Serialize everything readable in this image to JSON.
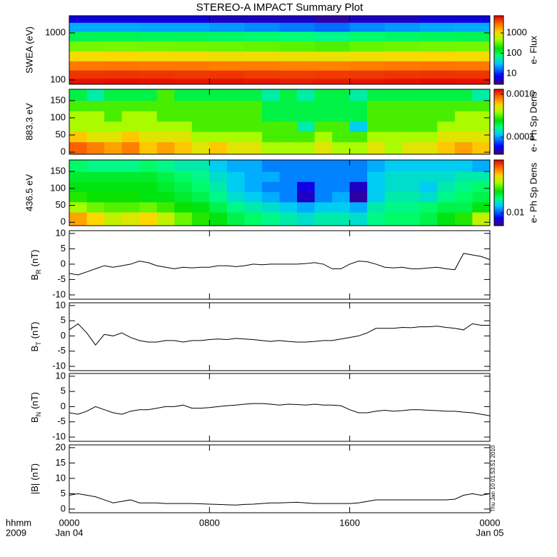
{
  "chart_data": [
    {
      "type": "heatmap",
      "title": "STEREO-A IMPACT Summary Plot",
      "ylabel": "SWEA (eV)",
      "ylog": true,
      "xlim": [
        0,
        24
      ],
      "xticks": [
        0,
        8,
        16,
        24
      ],
      "ylim": [
        81,
        2310
      ],
      "yticks": [
        100,
        1000
      ],
      "x": [
        1,
        3,
        5,
        7,
        9,
        11,
        13,
        15,
        17,
        19,
        21,
        23
      ],
      "y": [
        90,
        130,
        200,
        320,
        520,
        850,
        1350,
        2050
      ],
      "z": [
        [
          6000,
          6200,
          6000,
          5800,
          6000,
          5800,
          5500,
          5600,
          5800,
          6000,
          6200,
          6000
        ],
        [
          4500,
          4600,
          4500,
          4400,
          4500,
          4300,
          4200,
          4300,
          4400,
          4500,
          4600,
          4500
        ],
        [
          2500,
          2600,
          2500,
          2500,
          2400,
          2400,
          2300,
          2300,
          2400,
          2500,
          2600,
          2500
        ],
        [
          1000,
          1050,
          1000,
          1000,
          950,
          950,
          900,
          900,
          950,
          1000,
          1050,
          1000
        ],
        [
          350,
          360,
          350,
          340,
          330,
          320,
          300,
          280,
          320,
          340,
          350,
          350
        ],
        [
          100,
          100,
          95,
          95,
          90,
          85,
          80,
          70,
          85,
          90,
          95,
          100
        ],
        [
          25,
          25,
          24,
          24,
          22,
          20,
          18,
          16,
          20,
          22,
          24,
          25
        ],
        [
          6,
          6,
          6,
          6,
          5,
          5,
          5,
          4,
          5,
          5,
          6,
          6
        ]
      ],
      "colormap": "rainbow",
      "clog": true,
      "clim": [
        3,
        7000
      ],
      "cticks": [
        10,
        100,
        1000
      ],
      "clabel": "e- Flux"
    },
    {
      "type": "heatmap",
      "ylabel": "883.3 eV",
      "ylog": false,
      "xlim": [
        0,
        24
      ],
      "xticks": [
        0,
        8,
        16,
        24
      ],
      "ylim": [
        -6,
        183
      ],
      "yticks": [
        0,
        50,
        100,
        150
      ],
      "x": [
        0.5,
        1.5,
        2.5,
        3.5,
        4.5,
        5.5,
        6.5,
        7.5,
        8.5,
        9.5,
        10.5,
        11.5,
        12.5,
        13.5,
        14.5,
        15.5,
        16.5,
        17.5,
        18.5,
        19.5,
        20.5,
        21.5,
        22.5,
        23.5
      ],
      "y": [
        15,
        45,
        75,
        105,
        135,
        165
      ],
      "z": [
        [
          0.0009,
          0.0008,
          0.0007,
          0.0008,
          0.0006,
          0.0007,
          0.0006,
          0.0005,
          0.0006,
          0.0005,
          0.0005,
          0.0004,
          0.0004,
          0.0004,
          0.0005,
          0.0004,
          0.0004,
          0.0005,
          0.0004,
          0.0005,
          0.0005,
          0.0006,
          0.0007,
          0.0006
        ],
        [
          0.0006,
          0.0005,
          0.0005,
          0.0006,
          0.0005,
          0.0005,
          0.0005,
          0.0004,
          0.0004,
          0.0004,
          0.0004,
          0.0003,
          0.0003,
          0.0003,
          0.0004,
          0.0003,
          0.0003,
          0.0004,
          0.0004,
          0.0004,
          0.0004,
          0.0005,
          0.0005,
          0.0005
        ],
        [
          0.0004,
          0.0004,
          0.0004,
          0.0004,
          0.0004,
          0.0004,
          0.0004,
          0.0003,
          0.0003,
          0.0003,
          0.0003,
          0.0003,
          0.0003,
          0.00015,
          0.0003,
          0.0003,
          0.00012,
          0.0003,
          0.0003,
          0.0003,
          0.0003,
          0.0004,
          0.0004,
          0.0004
        ],
        [
          0.0004,
          0.0004,
          0.0003,
          0.0004,
          0.0004,
          0.0003,
          0.0003,
          0.0003,
          0.0003,
          0.0003,
          0.0003,
          0.0002,
          0.0002,
          0.0002,
          0.0002,
          0.0002,
          0.0002,
          0.0003,
          0.0003,
          0.0003,
          0.0003,
          0.0003,
          0.0004,
          0.0004
        ],
        [
          0.0003,
          0.0003,
          0.0003,
          0.0003,
          0.0003,
          0.0003,
          0.0003,
          0.0003,
          0.0003,
          0.0003,
          0.0003,
          0.0002,
          0.0002,
          0.0002,
          0.0002,
          0.0002,
          0.0002,
          0.0003,
          0.0003,
          0.0003,
          0.0003,
          0.0003,
          0.0003,
          0.0003
        ],
        [
          0.0002,
          0.00015,
          0.0002,
          0.0002,
          0.0002,
          0.0003,
          0.0002,
          0.0002,
          0.0002,
          0.0002,
          0.0002,
          0.00015,
          0.0002,
          0.00015,
          0.0002,
          0.0002,
          0.00015,
          0.0002,
          0.0002,
          0.0002,
          0.0002,
          0.0002,
          0.0002,
          0.00015
        ]
      ],
      "colormap": "rainbow",
      "clog": true,
      "clim": [
        4e-05,
        0.0013
      ],
      "cticks": [
        {
          "value": 0.001,
          "label": "0.0010"
        },
        0.0001
      ],
      "clabel": "e- Ph Sp Dens"
    },
    {
      "type": "heatmap",
      "ylabel": "436.5 eV",
      "ylog": false,
      "xlim": [
        0,
        24
      ],
      "xticks": [
        0,
        8,
        16,
        24
      ],
      "ylim": [
        -10,
        184
      ],
      "yticks": [
        0,
        50,
        100,
        150
      ],
      "x": [
        0.5,
        1.5,
        2.5,
        3.5,
        4.5,
        5.5,
        6.5,
        7.5,
        8.5,
        9.5,
        10.5,
        11.5,
        12.5,
        13.5,
        14.5,
        15.5,
        16.5,
        17.5,
        18.5,
        19.5,
        20.5,
        21.5,
        22.5,
        23.5
      ],
      "y": [
        15,
        45,
        75,
        105,
        135,
        165
      ],
      "z": [
        [
          0.04,
          0.035,
          0.03,
          0.032,
          0.035,
          0.03,
          0.025,
          0.022,
          0.02,
          0.018,
          0.017,
          0.016,
          0.015,
          0.014,
          0.015,
          0.015,
          0.014,
          0.016,
          0.017,
          0.017,
          0.018,
          0.02,
          0.022,
          0.03
        ],
        [
          0.028,
          0.025,
          0.024,
          0.024,
          0.025,
          0.023,
          0.021,
          0.02,
          0.018,
          0.016,
          0.015,
          0.014,
          0.013,
          0.012,
          0.013,
          0.013,
          0.012,
          0.015,
          0.016,
          0.016,
          0.017,
          0.018,
          0.018,
          0.02
        ],
        [
          0.022,
          0.021,
          0.021,
          0.021,
          0.02,
          0.02,
          0.019,
          0.018,
          0.016,
          0.014,
          0.013,
          0.012,
          0.011,
          0.0075,
          0.011,
          0.012,
          0.007,
          0.013,
          0.015,
          0.015,
          0.014,
          0.016,
          0.017,
          0.018
        ],
        [
          0.02,
          0.02,
          0.02,
          0.02,
          0.02,
          0.019,
          0.018,
          0.017,
          0.015,
          0.013,
          0.012,
          0.011,
          0.011,
          0.008,
          0.011,
          0.011,
          0.0075,
          0.013,
          0.014,
          0.014,
          0.013,
          0.015,
          0.016,
          0.017
        ],
        [
          0.019,
          0.019,
          0.019,
          0.019,
          0.019,
          0.018,
          0.017,
          0.016,
          0.014,
          0.013,
          0.012,
          0.012,
          0.011,
          0.011,
          0.011,
          0.011,
          0.011,
          0.013,
          0.014,
          0.014,
          0.014,
          0.014,
          0.015,
          0.015
        ],
        [
          0.017,
          0.016,
          0.016,
          0.016,
          0.017,
          0.016,
          0.015,
          0.015,
          0.013,
          0.012,
          0.012,
          0.011,
          0.011,
          0.011,
          0.011,
          0.011,
          0.011,
          0.012,
          0.013,
          0.013,
          0.013,
          0.013,
          0.013,
          0.012
        ]
      ],
      "colormap": "rainbow",
      "clog": true,
      "clim": [
        0.0065,
        0.06
      ],
      "cticks": [
        0.01
      ],
      "clabel": "e- Ph Sp Dens"
    },
    {
      "type": "line",
      "ylabel": {
        "main": "B",
        "sub": "R",
        "unit": "(nT)"
      },
      "color": "#000000",
      "xlim": [
        0,
        24
      ],
      "xticks": [
        0,
        8,
        16,
        24
      ],
      "ylim": [
        -11.4,
        10.9
      ],
      "yticks": [
        -10,
        -5,
        0,
        5,
        10
      ],
      "x": [
        0,
        0.5,
        1,
        1.5,
        2,
        2.5,
        3,
        3.5,
        4,
        4.5,
        5,
        5.5,
        6,
        6.5,
        7,
        7.5,
        8,
        8.5,
        9,
        9.5,
        10,
        10.5,
        11,
        11.5,
        12,
        12.5,
        13,
        13.5,
        14,
        14.5,
        15,
        15.5,
        16,
        16.5,
        17,
        17.5,
        18,
        18.5,
        19,
        19.5,
        20,
        20.5,
        21,
        21.5,
        22,
        22.5,
        23,
        23.5,
        24
      ],
      "values": [
        -3,
        -3.5,
        -2.5,
        -1.5,
        -0.5,
        -1,
        -0.5,
        0,
        1,
        0.5,
        -0.5,
        -1,
        -1.5,
        -1,
        -1.2,
        -1,
        -1,
        -0.5,
        -0.5,
        -0.8,
        -0.5,
        0,
        -0.2,
        0,
        0,
        0,
        0,
        0.2,
        0.5,
        0,
        -1.5,
        -1.5,
        0,
        1,
        0.8,
        0,
        -1,
        -1.2,
        -1,
        -1.5,
        -1.5,
        -1.2,
        -1,
        -1.5,
        -1.8,
        3.5,
        3,
        2.5,
        1.5
      ]
    },
    {
      "type": "line",
      "ylabel": {
        "main": "B",
        "sub": "T",
        "unit": "(nT)"
      },
      "color": "#000000",
      "xlim": [
        0,
        24
      ],
      "xticks": [
        0,
        8,
        16,
        24
      ],
      "ylim": [
        -11.4,
        10.9
      ],
      "yticks": [
        -10,
        -5,
        0,
        5,
        10
      ],
      "x": [
        0,
        0.5,
        1,
        1.5,
        2,
        2.5,
        3,
        3.5,
        4,
        4.5,
        5,
        5.5,
        6,
        6.5,
        7,
        7.5,
        8,
        8.5,
        9,
        9.5,
        10,
        10.5,
        11,
        11.5,
        12,
        12.5,
        13,
        13.5,
        14,
        14.5,
        15,
        15.5,
        16,
        16.5,
        17,
        17.5,
        18,
        18.5,
        19,
        19.5,
        20,
        20.5,
        21,
        21.5,
        22,
        22.5,
        23,
        23.5,
        24
      ],
      "values": [
        2,
        4,
        1,
        -3,
        0.5,
        0,
        1,
        -0.5,
        -1.5,
        -2,
        -2,
        -1.5,
        -1.5,
        -2,
        -1.5,
        -1.5,
        -1.2,
        -1,
        -1.2,
        -0.8,
        -1,
        -1.2,
        -1.5,
        -1.8,
        -1.5,
        -1.8,
        -2,
        -2,
        -1.8,
        -1.5,
        -1.5,
        -1,
        -0.5,
        0,
        1,
        2.5,
        2.5,
        2.5,
        2.8,
        2.7,
        3,
        3,
        3.2,
        2.8,
        2.5,
        2,
        4,
        3.5,
        3.5
      ]
    },
    {
      "type": "line",
      "ylabel": {
        "main": "B",
        "sub": "N",
        "unit": "(nT)"
      },
      "color": "#000000",
      "xlim": [
        0,
        24
      ],
      "xticks": [
        0,
        8,
        16,
        24
      ],
      "ylim": [
        -11.4,
        10.9
      ],
      "yticks": [
        -10,
        -5,
        0,
        5,
        10
      ],
      "x": [
        0,
        0.5,
        1,
        1.5,
        2,
        2.5,
        3,
        3.5,
        4,
        4.5,
        5,
        5.5,
        6,
        6.5,
        7,
        7.5,
        8,
        8.5,
        9,
        9.5,
        10,
        10.5,
        11,
        11.5,
        12,
        12.5,
        13,
        13.5,
        14,
        14.5,
        15,
        15.5,
        16,
        16.5,
        17,
        17.5,
        18,
        18.5,
        19,
        19.5,
        20,
        20.5,
        21,
        21.5,
        22,
        22.5,
        23,
        23.5,
        24
      ],
      "values": [
        -2,
        -2.5,
        -1.5,
        0,
        -1,
        -2,
        -2.5,
        -1.5,
        -1,
        -1,
        -0.5,
        0,
        0,
        0.5,
        -0.5,
        -0.5,
        -0.3,
        0,
        0.3,
        0.5,
        0.8,
        1,
        1,
        0.8,
        0.5,
        0.8,
        0.7,
        0.5,
        0.8,
        0.5,
        0.5,
        0.3,
        -1,
        -2,
        -2,
        -1.5,
        -1.2,
        -1.5,
        -1.3,
        -1,
        -1,
        -1.2,
        -1.3,
        -1.5,
        -1.5,
        -1.8,
        -2,
        -2.5,
        -3
      ]
    },
    {
      "type": "line",
      "ylabel": {
        "main": "|B|",
        "unit": "(nT)"
      },
      "color": "#000000",
      "xlim": [
        0,
        24
      ],
      "ylim": [
        -1.2,
        20.9
      ],
      "yticks": [
        0,
        5,
        10,
        15,
        20
      ],
      "xticks": [
        {
          "value": 0,
          "label": "0000"
        },
        {
          "value": 8,
          "label": "0800"
        },
        {
          "value": 16,
          "label": "1600"
        },
        {
          "value": 24,
          "label": "0000"
        }
      ],
      "xtick_dates": [
        {
          "value": 0,
          "label": "Jan 04"
        },
        {
          "value": 24,
          "label": "Jan 05"
        }
      ],
      "xlabel_left": [
        "hhmm",
        "2009"
      ],
      "side_note": "Thu Jan 10 01:53:51 2010",
      "x": [
        0,
        0.5,
        1,
        1.5,
        2,
        2.5,
        3,
        3.5,
        4,
        4.5,
        5,
        5.5,
        6,
        6.5,
        7,
        7.5,
        8,
        8.5,
        9,
        9.5,
        10,
        10.5,
        11,
        11.5,
        12,
        12.5,
        13,
        13.5,
        14,
        14.5,
        15,
        15.5,
        16,
        16.5,
        17,
        17.5,
        18,
        18.5,
        19,
        19.5,
        20,
        20.5,
        21,
        21.5,
        22,
        22.5,
        23,
        23.5,
        24
      ],
      "values": [
        4.5,
        5,
        4.5,
        4,
        3,
        2,
        2.5,
        3,
        2,
        2,
        2,
        1.8,
        1.8,
        1.8,
        1.8,
        1.7,
        1.6,
        1.5,
        1.4,
        1.3,
        1.5,
        1.6,
        1.8,
        2,
        2,
        2.1,
        2.2,
        2,
        1.8,
        1.8,
        1.8,
        1.8,
        1.8,
        2,
        2.5,
        3,
        3,
        3,
        3,
        3,
        3,
        3,
        3,
        3,
        3.2,
        4.5,
        5,
        4.5,
        5
      ]
    }
  ]
}
